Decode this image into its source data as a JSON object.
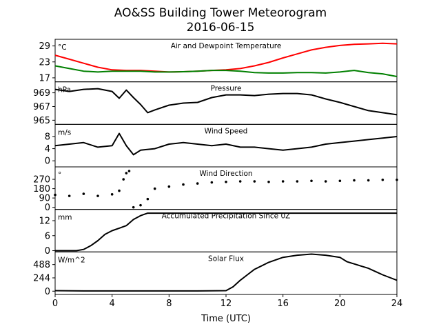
{
  "figure": {
    "title_line1": "AO&SS Building Tower Meteorogram",
    "title_line2": "2016-06-15",
    "xlabel": "Time (UTC)",
    "xticks": [
      0,
      4,
      8,
      12,
      16,
      20,
      24
    ],
    "xlim": [
      0,
      24
    ]
  },
  "chart_data": [
    {
      "type": "line",
      "title": "Air and Dewpoint Temperature",
      "unit": "°C",
      "ylim": [
        15.5,
        31.5
      ],
      "yticks": [
        17,
        23,
        29
      ],
      "series": [
        {
          "color": "#ff0000",
          "x": [
            0,
            1,
            2,
            3,
            4,
            5,
            6,
            7,
            8,
            9,
            10,
            11,
            12,
            13,
            14,
            15,
            16,
            17,
            18,
            19,
            20,
            21,
            22,
            23,
            24
          ],
          "y": [
            25.5,
            24,
            22.5,
            21,
            20,
            19.8,
            19.8,
            19.5,
            19.2,
            19.3,
            19.5,
            19.8,
            20,
            20.5,
            21.5,
            22.8,
            24.5,
            26,
            27.5,
            28.5,
            29.2,
            29.6,
            29.8,
            30,
            29.8
          ]
        },
        {
          "color": "#008000",
          "x": [
            0,
            1,
            2,
            3,
            4,
            5,
            6,
            7,
            8,
            9,
            10,
            11,
            12,
            13,
            14,
            15,
            16,
            17,
            18,
            19,
            20,
            21,
            22,
            23,
            24
          ],
          "y": [
            21.5,
            20.5,
            19.5,
            19.2,
            19.5,
            19.5,
            19.5,
            19.2,
            19.2,
            19.3,
            19.5,
            19.8,
            19.8,
            19.5,
            19,
            18.8,
            18.8,
            19,
            19,
            18.8,
            19.2,
            19.8,
            19,
            18.5,
            17.5
          ]
        }
      ]
    },
    {
      "type": "line",
      "title": "Pressure",
      "unit": "hPa",
      "ylim": [
        964.4,
        970.6
      ],
      "yticks": [
        965,
        967,
        969
      ],
      "series": [
        {
          "color": "#000000",
          "x": [
            0,
            1,
            2,
            3,
            4,
            4.5,
            5,
            5.5,
            6,
            6.5,
            7,
            8,
            9,
            10,
            11,
            12,
            13,
            14,
            15,
            16,
            17,
            18,
            19,
            20,
            21,
            22,
            23,
            24
          ],
          "y": [
            969.5,
            969.2,
            969.5,
            969.6,
            969.2,
            968.2,
            969.4,
            968.3,
            967.3,
            966.1,
            966.5,
            967.2,
            967.5,
            967.6,
            968.3,
            968.7,
            968.7,
            968.6,
            968.8,
            968.9,
            968.9,
            968.7,
            968.1,
            967.6,
            967.0,
            966.4,
            966.1,
            965.8
          ]
        }
      ]
    },
    {
      "type": "line",
      "title": "Wind Speed",
      "unit": "m/s",
      "ylim": [
        -2,
        12
      ],
      "yticks": [
        0,
        4,
        8
      ],
      "series": [
        {
          "color": "#000000",
          "x": [
            0,
            1,
            2,
            3,
            4,
            4.5,
            5,
            5.5,
            6,
            7,
            8,
            9,
            10,
            11,
            12,
            13,
            14,
            15,
            16,
            17,
            18,
            19,
            20,
            21,
            22,
            23,
            24
          ],
          "y": [
            5,
            5.5,
            6,
            4.5,
            5,
            9,
            5,
            2,
            3.5,
            4,
            5.5,
            6,
            5.5,
            5,
            5.5,
            4.5,
            4.5,
            4,
            3.5,
            4,
            4.5,
            5.5,
            6,
            6.5,
            7,
            7.5,
            8
          ]
        }
      ]
    },
    {
      "type": "scatter",
      "title": "Wind Direction",
      "unit": "°",
      "ylim": [
        -20,
        390
      ],
      "yticks": [
        0,
        90,
        180,
        270
      ],
      "series": [
        {
          "color": "#000000",
          "x": [
            0,
            1,
            2,
            3,
            4,
            4.5,
            4.8,
            5,
            5.2,
            5.5,
            6,
            6.5,
            7,
            8,
            9,
            10,
            11,
            12,
            13,
            14,
            15,
            16,
            17,
            18,
            19,
            20,
            21,
            22,
            23,
            24
          ],
          "y": [
            120,
            110,
            130,
            110,
            125,
            160,
            270,
            330,
            350,
            0,
            20,
            80,
            180,
            200,
            220,
            230,
            240,
            245,
            250,
            250,
            245,
            250,
            250,
            255,
            250,
            255,
            260,
            260,
            265,
            265
          ]
        }
      ]
    },
    {
      "type": "line",
      "title": "Accumulated Precipitation Since 0Z",
      "unit": "mm",
      "ylim": [
        -0.5,
        16.5
      ],
      "yticks": [
        0,
        6,
        12
      ],
      "series": [
        {
          "color": "#000000",
          "x": [
            0,
            1.5,
            2,
            2.5,
            3,
            3.5,
            4,
            4.5,
            5,
            5.5,
            6,
            6.5,
            24
          ],
          "y": [
            0,
            0,
            0.5,
            2,
            4,
            6.5,
            8,
            9,
            10,
            12.5,
            14,
            15,
            15
          ]
        }
      ]
    },
    {
      "type": "line",
      "title": "Solar Flux",
      "unit": "W/m^2",
      "ylim": [
        -60,
        720
      ],
      "yticks": [
        0,
        244,
        488
      ],
      "series": [
        {
          "color": "#000000",
          "x": [
            0,
            2,
            4,
            6,
            8,
            10,
            12,
            12.5,
            13,
            13.5,
            14,
            15,
            16,
            17,
            18,
            19,
            20,
            20.5,
            21,
            21.5,
            22,
            22.5,
            23,
            23.5,
            24
          ],
          "y": [
            10,
            5,
            5,
            5,
            5,
            5,
            10,
            80,
            200,
            300,
            400,
            530,
            620,
            660,
            680,
            660,
            620,
            540,
            500,
            460,
            420,
            360,
            300,
            250,
            200
          ]
        }
      ]
    }
  ]
}
